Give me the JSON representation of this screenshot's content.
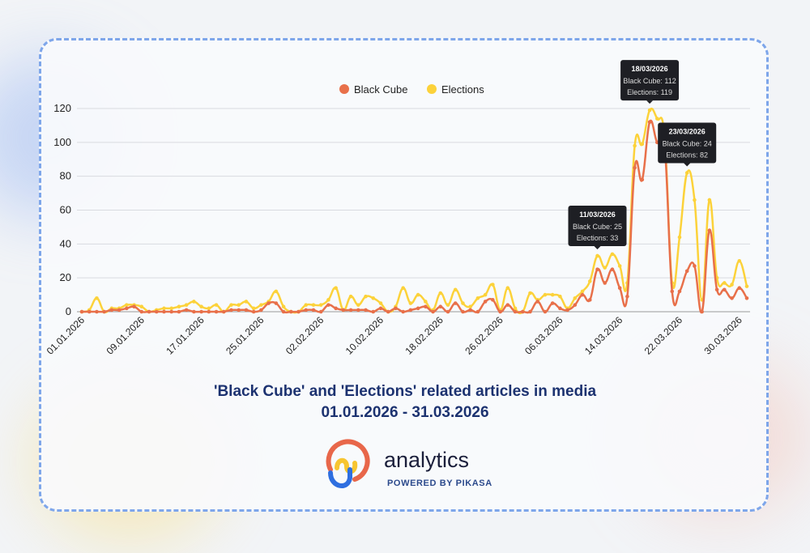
{
  "chart_data": {
    "type": "line",
    "title": "'Black Cube' and 'Elections' related articles in media",
    "subtitle": "01.01.2026 - 31.03.2026",
    "xlabel": "",
    "ylabel": "",
    "ylim": [
      0,
      120
    ],
    "yticks": [
      0,
      20,
      40,
      60,
      80,
      100,
      120
    ],
    "grid": true,
    "legend_position": "top-center",
    "x_start": "01.01.2026",
    "x_end": "31.03.2026",
    "xtick_labels": [
      "01.01.2026",
      "09.01.2026",
      "17.01.2026",
      "25.01.2026",
      "02.02.2026",
      "10.02.2026",
      "18.02.2026",
      "26.02.2026",
      "06.03.2026",
      "14.03.2026",
      "22.03.2026",
      "30.03.2026"
    ],
    "xtick_step_days": 8,
    "series": [
      {
        "name": "Black Cube",
        "color": "#e8704a",
        "values": [
          0,
          0,
          0,
          0,
          1,
          1,
          2,
          3,
          0,
          0,
          0,
          0,
          0,
          0,
          1,
          0,
          0,
          0,
          0,
          0,
          1,
          1,
          1,
          0,
          1,
          5,
          5,
          0,
          0,
          0,
          1,
          1,
          0,
          4,
          2,
          1,
          1,
          1,
          1,
          0,
          2,
          0,
          2,
          0,
          1,
          2,
          3,
          0,
          3,
          0,
          5,
          0,
          1,
          0,
          6,
          7,
          0,
          4,
          0,
          0,
          0,
          6,
          0,
          5,
          2,
          1,
          4,
          10,
          7,
          25,
          17,
          25,
          14,
          9,
          85,
          78,
          112,
          100,
          98,
          12,
          12,
          24,
          27,
          0,
          48,
          13,
          13,
          8,
          14,
          8
        ]
      },
      {
        "name": "Elections",
        "color": "#fcd23a",
        "values": [
          0,
          1,
          8,
          0,
          2,
          2,
          4,
          4,
          3,
          0,
          1,
          2,
          2,
          3,
          4,
          6,
          3,
          2,
          4,
          0,
          4,
          4,
          6,
          2,
          4,
          6,
          12,
          3,
          0,
          0,
          4,
          4,
          4,
          7,
          14,
          1,
          9,
          4,
          9,
          8,
          5,
          0,
          3,
          14,
          5,
          10,
          6,
          1,
          11,
          4,
          13,
          5,
          3,
          8,
          10,
          16,
          1,
          14,
          2,
          0,
          11,
          7,
          10,
          10,
          9,
          2,
          8,
          12,
          18,
          33,
          26,
          34,
          27,
          17,
          98,
          99,
          119,
          114,
          103,
          17,
          44,
          82,
          66,
          7,
          66,
          20,
          17,
          16,
          30,
          15
        ]
      }
    ],
    "tooltips": [
      {
        "index": 69,
        "date": "11/03/2026",
        "line1": "Black Cube: 25",
        "line2": "Elections: 33"
      },
      {
        "index": 76,
        "date": "18/03/2026",
        "line1": "Black Cube: 112",
        "line2": "Elections: 119"
      },
      {
        "index": 81,
        "date": "23/03/2026",
        "line1": "Black Cube: 24",
        "line2": "Elections: 82"
      }
    ]
  },
  "branding": {
    "name": "analytics",
    "powered": "POWERED BY PIKASA"
  },
  "colors": {
    "title": "#1c3270",
    "border": "#7ea6ea"
  }
}
